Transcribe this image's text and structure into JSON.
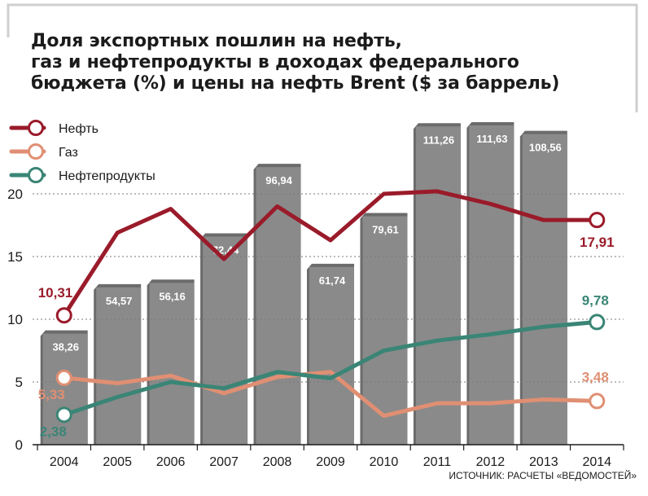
{
  "title_lines": [
    "Доля экспортных пошлин на нефть,",
    "газ и нефтепродукты в доходах федерального",
    "бюджета (%) и цены на нефть Brent ($ за баррель)"
  ],
  "source": "ИСТОЧНИК: РАСЧЕТЫ «ВЕДОМОСТЕЙ»",
  "colors": {
    "oil": "#9a1b2a",
    "gas": "#e08f73",
    "products": "#3a8576",
    "bar": "#8a8a8a",
    "bar_dark": "#6b6b6b",
    "frame": "#cfcfcf"
  },
  "chart_data": {
    "type": "bar",
    "categories": [
      "2004",
      "2005",
      "2006",
      "2007",
      "2008",
      "2009",
      "2010",
      "2011",
      "2012",
      "2013",
      "2014"
    ],
    "y_left": {
      "ticks": [
        0,
        5,
        10,
        15,
        20
      ],
      "ylim": [
        0,
        22
      ],
      "unit": "%"
    },
    "bars": {
      "values": [
        38.26,
        54.57,
        56.16,
        72.44,
        96.94,
        61.74,
        79.61,
        111.26,
        111.63,
        108.56,
        null
      ],
      "labels": [
        "38,26",
        "54,57",
        "56,16",
        "72,44",
        "96,94",
        "61,74",
        "79,61",
        "111,26",
        "111,63",
        "108,56",
        ""
      ],
      "unit": "$ за баррель"
    },
    "series": [
      {
        "name": "Нефть",
        "key": "oil",
        "values": [
          10.31,
          16.9,
          18.8,
          14.8,
          19.0,
          16.3,
          20.0,
          20.2,
          19.2,
          17.91,
          17.91
        ],
        "start_label": "10,31",
        "end_label": "17,91"
      },
      {
        "name": "Газ",
        "key": "gas",
        "values": [
          5.33,
          4.9,
          5.5,
          4.1,
          5.4,
          5.8,
          2.3,
          3.3,
          3.3,
          3.6,
          3.48
        ],
        "start_label": "5,33",
        "end_label": "3,48"
      },
      {
        "name": "Нефтепродукты",
        "key": "products",
        "values": [
          2.38,
          3.8,
          5.0,
          4.5,
          5.8,
          5.3,
          7.5,
          8.3,
          8.8,
          9.4,
          9.78
        ],
        "start_label": "2,38",
        "end_label": "9,78"
      }
    ],
    "legend_position": "top-left",
    "grid": true
  }
}
